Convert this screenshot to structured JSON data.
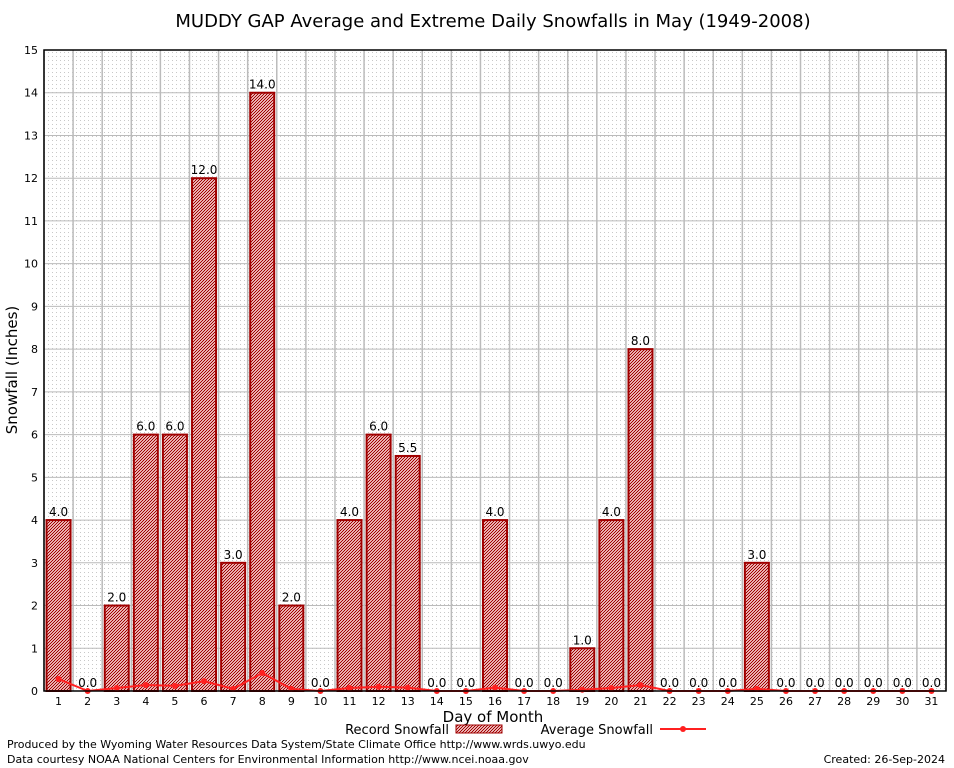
{
  "chart_data": {
    "type": "bar",
    "title": "MUDDY GAP Average and Extreme Daily Snowfalls in May (1949-2008)",
    "xlabel": "Day of Month",
    "ylabel": "Snowfall (Inches)",
    "ylim": [
      0,
      15
    ],
    "yticks": [
      0,
      1,
      2,
      3,
      4,
      5,
      6,
      7,
      8,
      9,
      10,
      11,
      12,
      13,
      14,
      15
    ],
    "grid": true,
    "legend_position": "bottom",
    "categories": [
      1,
      2,
      3,
      4,
      5,
      6,
      7,
      8,
      9,
      10,
      11,
      12,
      13,
      14,
      15,
      16,
      17,
      18,
      19,
      20,
      21,
      22,
      23,
      24,
      25,
      26,
      27,
      28,
      29,
      30,
      31
    ],
    "series": [
      {
        "name": "Record Snowfall",
        "type": "bar",
        "color": "#b00000",
        "values": [
          4.0,
          0.0,
          2.0,
          6.0,
          6.0,
          12.0,
          3.0,
          14.0,
          2.0,
          0.0,
          4.0,
          6.0,
          5.5,
          0.0,
          0.0,
          4.0,
          0.0,
          0.0,
          1.0,
          4.0,
          8.0,
          0.0,
          0.0,
          0.0,
          3.0,
          0.0,
          0.0,
          0.0,
          0.0,
          0.0,
          0.0
        ]
      },
      {
        "name": "Average Snowfall",
        "type": "line",
        "color": "#ff2020",
        "values": [
          0.28,
          0.0,
          0.07,
          0.14,
          0.12,
          0.23,
          0.05,
          0.42,
          0.05,
          0.0,
          0.07,
          0.1,
          0.08,
          0.0,
          0.0,
          0.08,
          0.0,
          0.0,
          0.03,
          0.07,
          0.14,
          0.0,
          0.0,
          0.0,
          0.05,
          0.0,
          0.0,
          0.0,
          0.0,
          0.0,
          0.0
        ]
      }
    ]
  },
  "footer": {
    "produced": "Produced by the Wyoming Water Resources Data System/State Climate Office http://www.wrds.uwyo.edu",
    "courtesy": "Data courtesy NOAA National Centers for Environmental Information http://www.ncei.noaa.gov",
    "created": "Created: 26-Sep-2024"
  }
}
